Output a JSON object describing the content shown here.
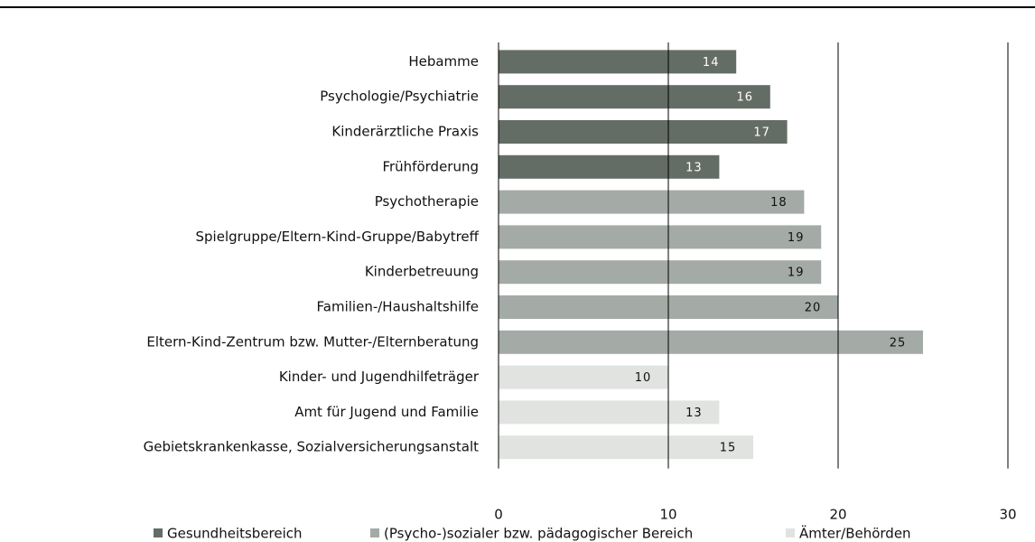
{
  "chart_data": {
    "type": "bar",
    "categories": [
      "Hebamme",
      "Psychologie/Psychiatrie",
      "Kinderärztliche Praxis",
      "Frühförderung",
      "Psychotherapie",
      "Spielgruppe/Eltern-Kind-Gruppe/Babytreff",
      "Kinderbetreuung ",
      "Familien-/Haushaltshilfe",
      "Eltern-Kind-Zentrum bzw. Mutter-/Elternberatung",
      "Kinder- und Jugendhilfeträger",
      "Amt für Jugend und Familie",
      "Gebietskrankenkasse, Sozialversicherungsanstalt"
    ],
    "series": [
      {
        "name": "Gesundheitsbereich",
        "color": "#646d65",
        "values": [
          14,
          16,
          17,
          13,
          null,
          null,
          null,
          null,
          null,
          null,
          null,
          null
        ]
      },
      {
        "name": "(Psycho-)sozialer bzw. pädagogischer Bereich",
        "color": "#a4aaa5",
        "values": [
          null,
          null,
          null,
          null,
          18,
          19,
          19,
          20,
          25,
          null,
          null,
          null
        ]
      },
      {
        "name": "Ämter/Behörden",
        "color": "#e1e3e1",
        "values": [
          null,
          null,
          null,
          null,
          null,
          null,
          null,
          null,
          null,
          10,
          13,
          15
        ]
      }
    ],
    "xlim": [
      0,
      30
    ],
    "xticks": [
      0,
      10,
      20,
      30
    ],
    "grid": true
  }
}
